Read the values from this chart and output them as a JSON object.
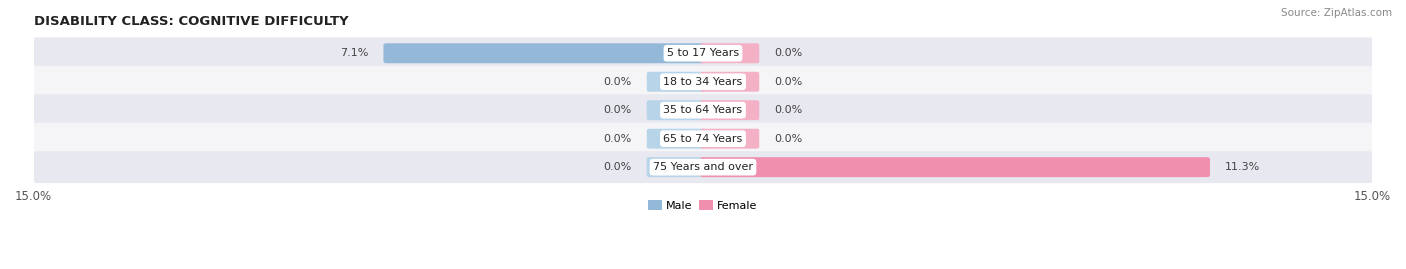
{
  "title": "DISABILITY CLASS: COGNITIVE DIFFICULTY",
  "source": "Source: ZipAtlas.com",
  "categories": [
    "5 to 17 Years",
    "18 to 34 Years",
    "35 to 64 Years",
    "65 to 74 Years",
    "75 Years and over"
  ],
  "male_values": [
    7.1,
    0.0,
    0.0,
    0.0,
    0.0
  ],
  "female_values": [
    0.0,
    0.0,
    0.0,
    0.0,
    11.3
  ],
  "male_color": "#93b8d8",
  "female_color": "#f090ae",
  "male_color_stub": "#b8d4e8",
  "female_color_stub": "#f4b0c4",
  "male_label": "Male",
  "female_label": "Female",
  "xlim": 15.0,
  "stub_size": 1.2,
  "bar_height": 0.58,
  "row_bg_odd": "#e8e8f0",
  "row_bg_even": "#f5f5f8",
  "title_fontsize": 9.5,
  "label_fontsize": 8.0,
  "tick_fontsize": 8.5,
  "source_fontsize": 7.5,
  "title_color": "#222222",
  "value_color": "#444444",
  "cat_color": "#222222",
  "background_color": "#ffffff"
}
